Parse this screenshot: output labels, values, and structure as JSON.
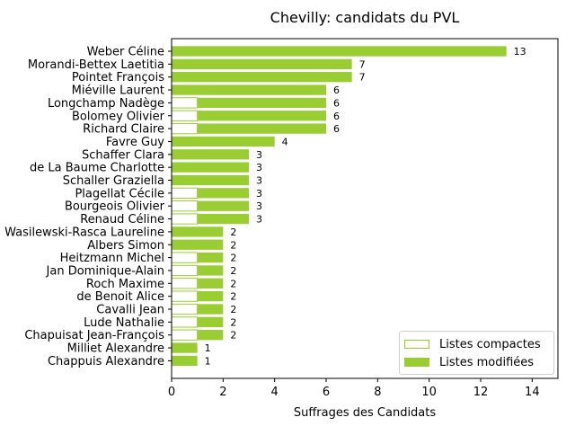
{
  "chart_data": {
    "type": "bar",
    "orientation": "horizontal",
    "stacked": true,
    "title": "Chevilly: candidats du PVL",
    "xlabel": "Suffrages des Candidats",
    "ylabel": "",
    "xlim": [
      0,
      15
    ],
    "xticks": [
      "0",
      "2",
      "4",
      "6",
      "8",
      "10",
      "12",
      "14"
    ],
    "grid": false,
    "legend_position": "lower-right",
    "categories": [
      "Weber Céline",
      "Morandi-Bettex Laetitia",
      "Pointet François",
      "Miéville Laurent",
      "Longchamp Nadège",
      "Bolomey Olivier",
      "Richard Claire",
      "Favre Guy",
      "Schaffer Clara",
      "de La Baume Charlotte",
      "Schaller Graziella",
      "Plagellat Cécile",
      "Bourgeois Olivier",
      "Renaud Céline",
      "Wasilewski-Rasca Laureline",
      "Albers Simon",
      "Heitzmann Michel",
      "Jan Dominique-Alain",
      "Roch Maxime",
      "de Benoit Alice",
      "Cavalli Jean",
      "Lude Nathalie",
      "Chapuisat Jean-François",
      "Milliet Alexandre",
      "Chappuis Alexandre"
    ],
    "series": [
      {
        "name": "Listes compactes",
        "color": "#9acd32",
        "style": "outline",
        "values": [
          0,
          0,
          0,
          0,
          1,
          1,
          1,
          0,
          0,
          0,
          0,
          1,
          1,
          1,
          0,
          0,
          1,
          1,
          1,
          1,
          1,
          1,
          1,
          0,
          0
        ]
      },
      {
        "name": "Listes modifiées",
        "color": "#9acd32",
        "style": "filled",
        "values": [
          13,
          7,
          7,
          6,
          5,
          5,
          5,
          4,
          3,
          3,
          3,
          2,
          2,
          2,
          2,
          2,
          1,
          1,
          1,
          1,
          1,
          1,
          1,
          1,
          1
        ]
      }
    ],
    "totals": [
      13,
      7,
      7,
      6,
      6,
      6,
      6,
      4,
      3,
      3,
      3,
      3,
      3,
      3,
      2,
      2,
      2,
      2,
      2,
      2,
      2,
      2,
      2,
      1,
      1
    ]
  }
}
